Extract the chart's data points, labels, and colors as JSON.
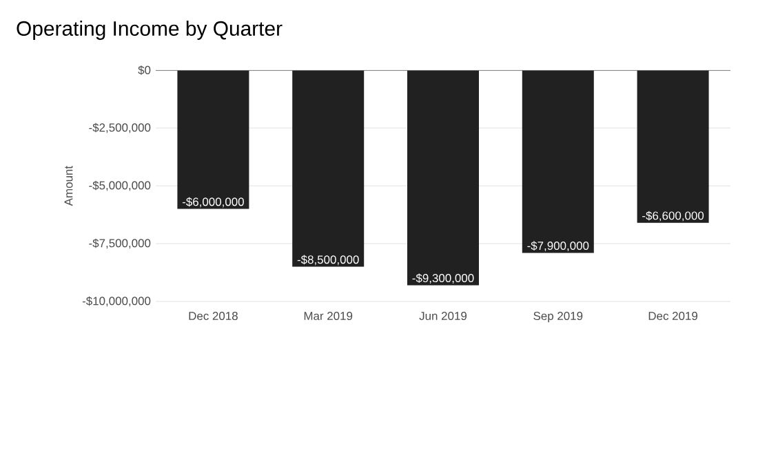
{
  "chart_data": {
    "type": "bar",
    "title": "Operating Income by Quarter",
    "ylabel": "Amount",
    "categories": [
      "Dec 2018",
      "Mar 2019",
      "Jun 2019",
      "Sep 2019",
      "Dec 2019"
    ],
    "values": [
      -6000000,
      -8500000,
      -9300000,
      -7900000,
      -6600000
    ],
    "value_labels": [
      "-$6,000,000",
      "-$8,500,000",
      "-$9,300,000",
      "-$7,900,000",
      "-$6,600,000"
    ],
    "color": "#212121",
    "ylim": [
      -10000000,
      0
    ],
    "yticks": [
      {
        "value": -10000000,
        "label": "-$10,000,000"
      },
      {
        "value": -7500000,
        "label": "-$7,500,000"
      },
      {
        "value": -5000000,
        "label": "-$5,000,000"
      },
      {
        "value": -2500000,
        "label": "-$2,500,000"
      },
      {
        "value": 0,
        "label": "$0"
      }
    ],
    "grid": "y"
  }
}
